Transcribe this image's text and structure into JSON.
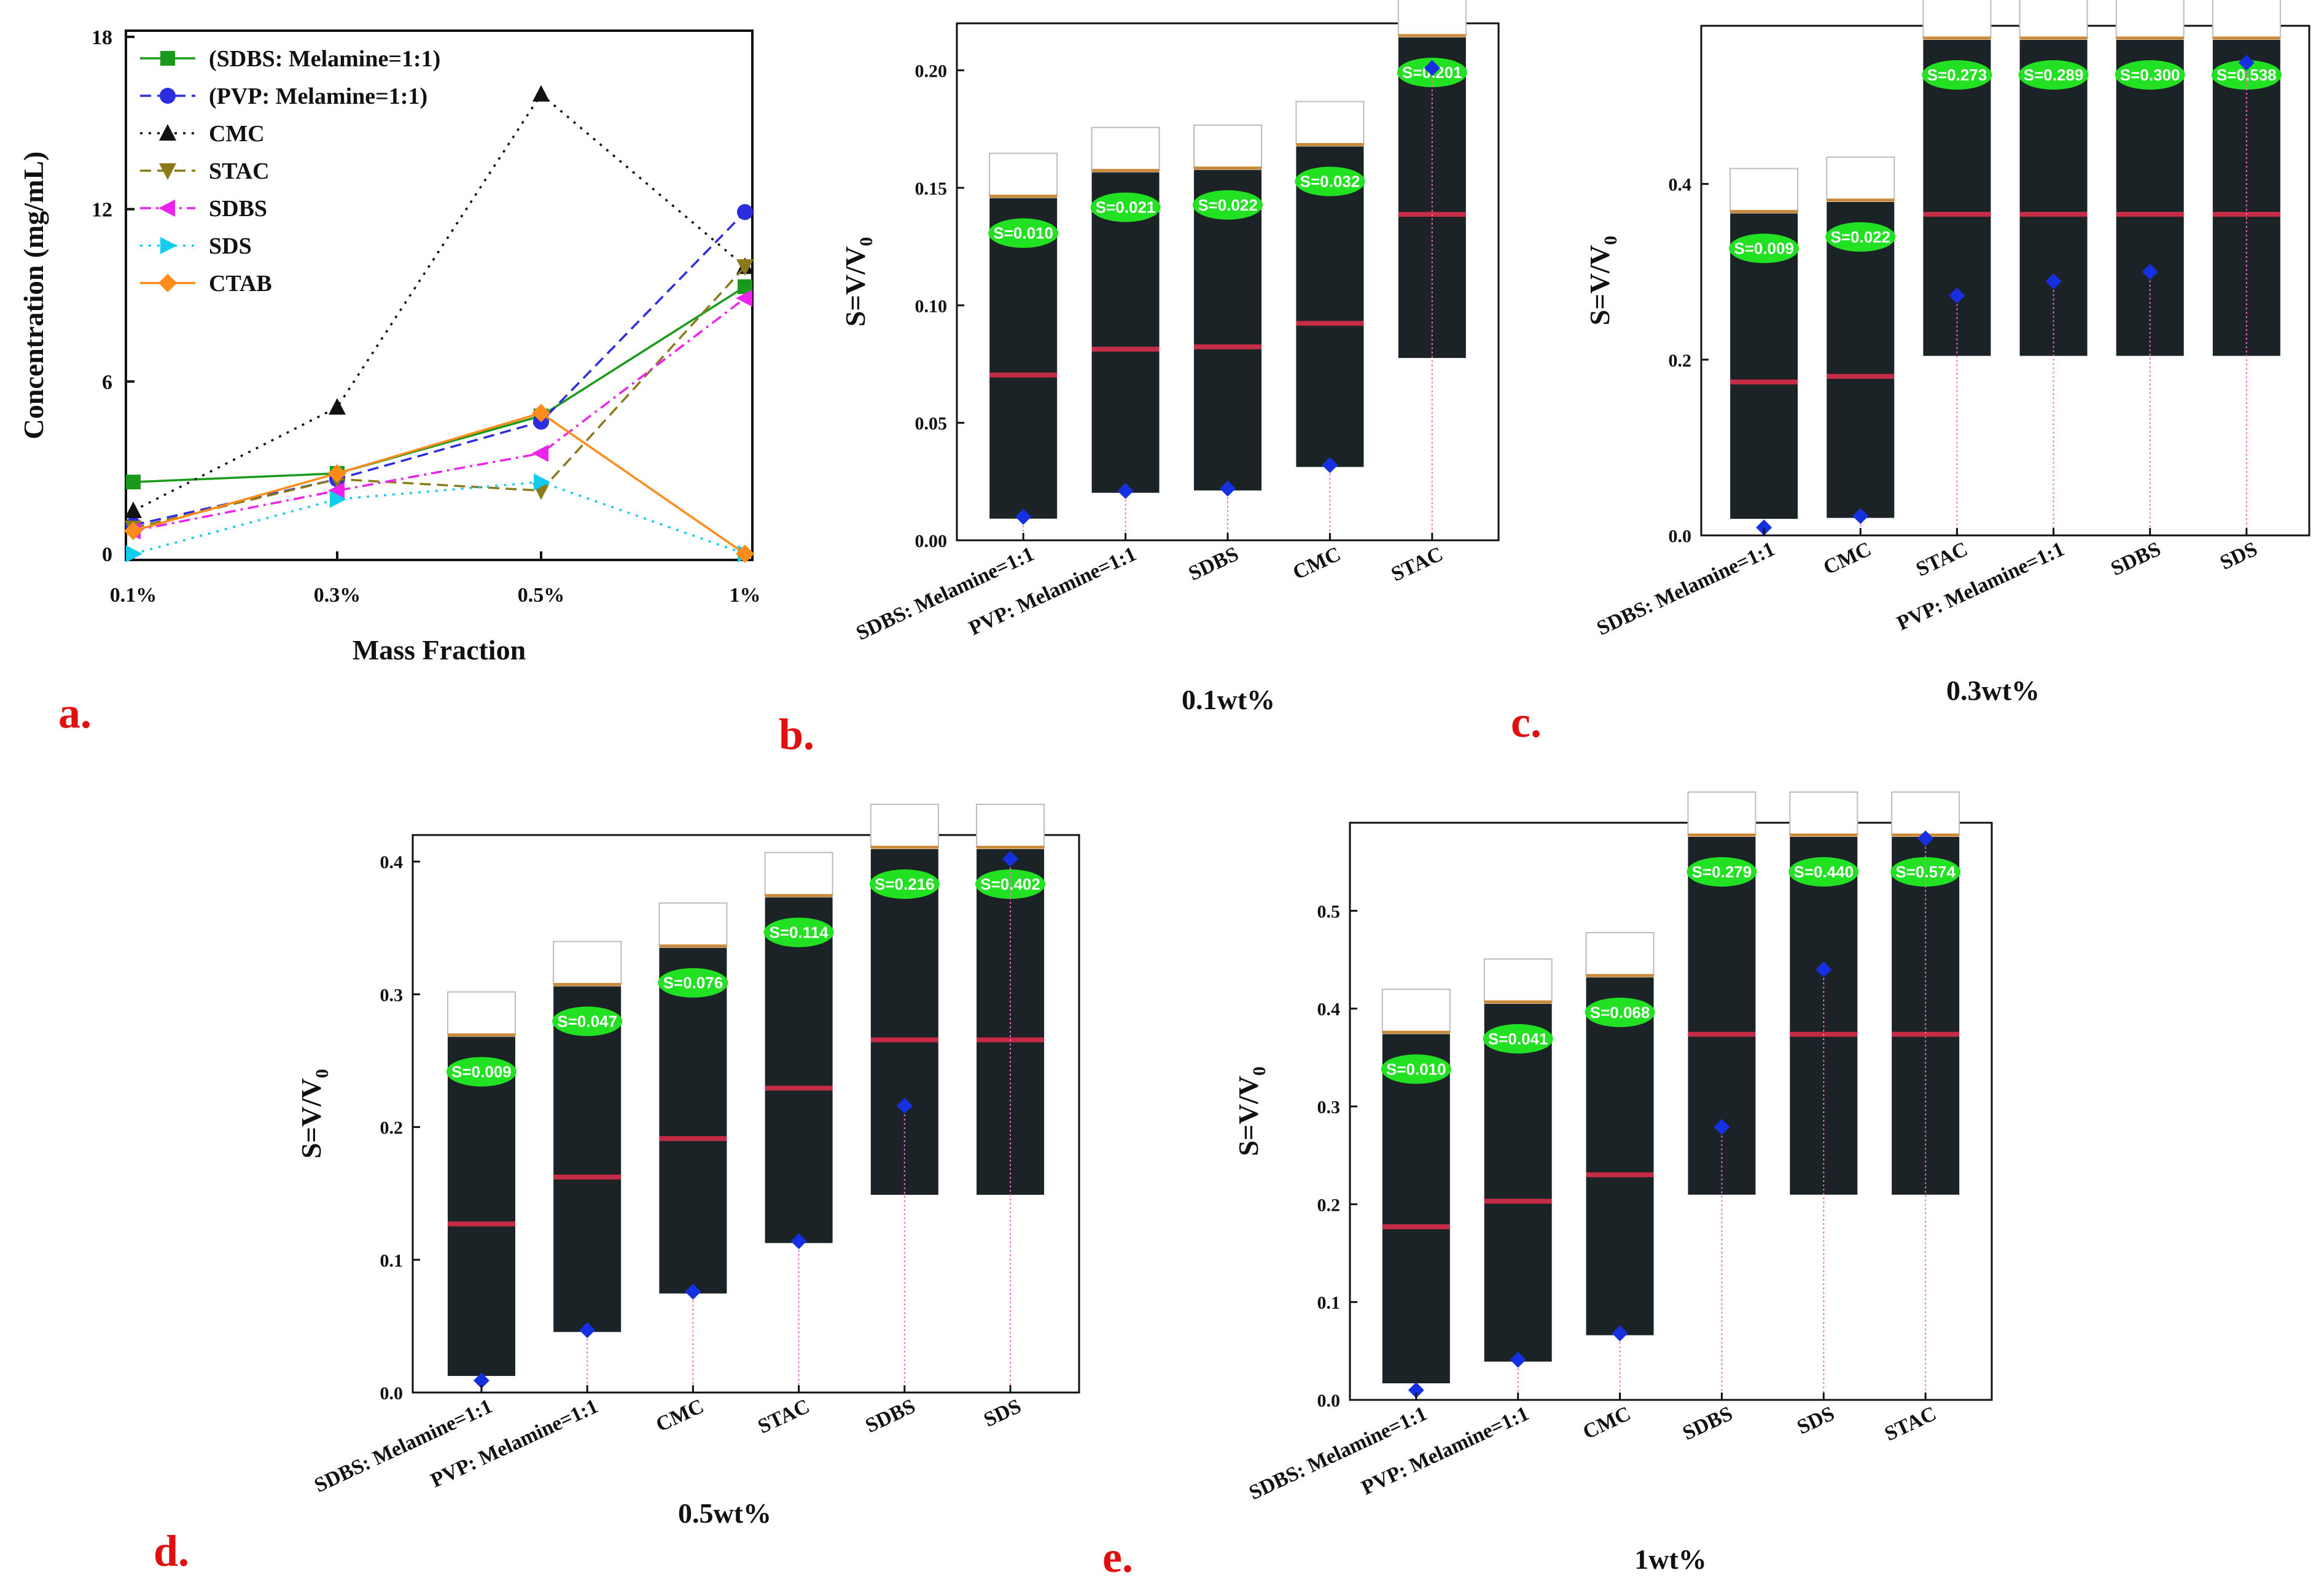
{
  "figure": {
    "panel_labels": [
      "a.",
      "b.",
      "c.",
      "d.",
      "e."
    ],
    "stability_ylabel": {
      "main": "S=V/V",
      "sub": "0"
    }
  },
  "chart_data": [
    {
      "panel": "a.",
      "type": "line",
      "title": "",
      "xlabel": "Mass Fraction",
      "ylabel": "Concentration (mg/mL)",
      "categories": [
        "0.1%",
        "0.3%",
        "0.5%",
        "1%"
      ],
      "ylim": [
        0,
        18
      ],
      "yticks": [
        0,
        6,
        12,
        18
      ],
      "legend_position": "top-left",
      "series": [
        {
          "name": "(SDBS: Melamine=1:1)",
          "color": "#1a9a1a",
          "dash": "solid",
          "marker": "square",
          "values": [
            2.5,
            2.8,
            4.8,
            9.3
          ]
        },
        {
          "name": "(PVP: Melamine=1:1)",
          "color": "#2d2de0",
          "dash": "dashed",
          "marker": "circle",
          "values": [
            1.0,
            2.6,
            4.6,
            11.9
          ]
        },
        {
          "name": "CMC",
          "color": "#111111",
          "dash": "dotted",
          "marker": "triangle-up",
          "values": [
            1.5,
            5.1,
            16.0,
            10.0
          ]
        },
        {
          "name": "STAC",
          "color": "#8a7a1a",
          "dash": "dashed",
          "marker": "triangle-down",
          "values": [
            0.9,
            2.6,
            2.2,
            10.0
          ]
        },
        {
          "name": "SDBS",
          "color": "#ee22ee",
          "dash": "dashdot",
          "marker": "triangle-left",
          "values": [
            0.8,
            2.2,
            3.5,
            8.9
          ]
        },
        {
          "name": "SDS",
          "color": "#11ccee",
          "dash": "dotted",
          "marker": "triangle-right",
          "values": [
            0.0,
            1.9,
            2.5,
            0.0
          ]
        },
        {
          "name": "CTAB",
          "color": "#ff8c1a",
          "dash": "solid",
          "marker": "diamond",
          "values": [
            0.8,
            2.8,
            4.9,
            0.0
          ]
        }
      ]
    },
    {
      "panel": "b.",
      "type": "scatter",
      "xlabel": "0.1wt%",
      "ylabel": "S=V/V0",
      "categories": [
        "SDBS: Melamine=1:1",
        "PVP: Melamine=1:1",
        "SDBS",
        "CMC",
        "STAC"
      ],
      "values": [
        0.01,
        0.021,
        0.022,
        0.032,
        0.201
      ],
      "badges": [
        "S=0.010",
        "S=0.021",
        "S=0.022",
        "S=0.032",
        "S=0.201"
      ],
      "ylim": [
        0,
        0.22
      ],
      "yticks": [
        "0.00",
        "0.05",
        "0.10",
        "0.15",
        "0.20"
      ],
      "ytick_values": [
        0,
        0.05,
        0.1,
        0.15,
        0.2
      ]
    },
    {
      "panel": "c.",
      "type": "scatter",
      "xlabel": "0.3wt%",
      "ylabel": "S=V/V0",
      "categories": [
        "SDBS: Melamine=1:1",
        "CMC",
        "STAC",
        "PVP: Melamine=1:1",
        "SDBS",
        "SDS"
      ],
      "values": [
        0.009,
        0.022,
        0.273,
        0.289,
        0.3,
        0.538
      ],
      "badges": [
        "S=0.009",
        "S=0.022",
        "S=0.273",
        "S=0.289",
        "S=0.300",
        "S=0.538"
      ],
      "ylim": [
        0,
        0.58
      ],
      "yticks": [
        "0.0",
        "0.2",
        "0.4"
      ],
      "ytick_values": [
        0,
        0.2,
        0.4
      ]
    },
    {
      "panel": "d.",
      "type": "scatter",
      "xlabel": "0.5wt%",
      "ylabel": "S=V/V0",
      "categories": [
        "SDBS: Melamine=1:1",
        "PVP: Melamine=1:1",
        "CMC",
        "STAC",
        "SDBS",
        "SDS"
      ],
      "values": [
        0.009,
        0.047,
        0.076,
        0.114,
        0.216,
        0.402
      ],
      "badges": [
        "S=0.009",
        "S=0.047",
        "S=0.076",
        "S=0.114",
        "S=0.216",
        "S=0.402"
      ],
      "ylim": [
        0,
        0.42
      ],
      "yticks": [
        "0.0",
        "0.1",
        "0.2",
        "0.3",
        "0.4"
      ],
      "ytick_values": [
        0,
        0.1,
        0.2,
        0.3,
        0.4
      ]
    },
    {
      "panel": "e.",
      "type": "scatter",
      "xlabel": "1wt%",
      "ylabel": "S=V/V0",
      "categories": [
        "SDBS: Melamine=1:1",
        "PVP: Melamine=1:1",
        "CMC",
        "SDBS",
        "SDS",
        "STAC"
      ],
      "values": [
        0.01,
        0.041,
        0.068,
        0.279,
        0.44,
        0.574
      ],
      "badges": [
        "S=0.010",
        "S=0.041",
        "S=0.068",
        "S=0.279",
        "S=0.440",
        "S=0.574"
      ],
      "ylim": [
        0,
        0.59
      ],
      "yticks": [
        "0.0",
        "0.1",
        "0.2",
        "0.3",
        "0.4",
        "0.5"
      ],
      "ytick_values": [
        0,
        0.1,
        0.2,
        0.3,
        0.4,
        0.5
      ]
    }
  ]
}
